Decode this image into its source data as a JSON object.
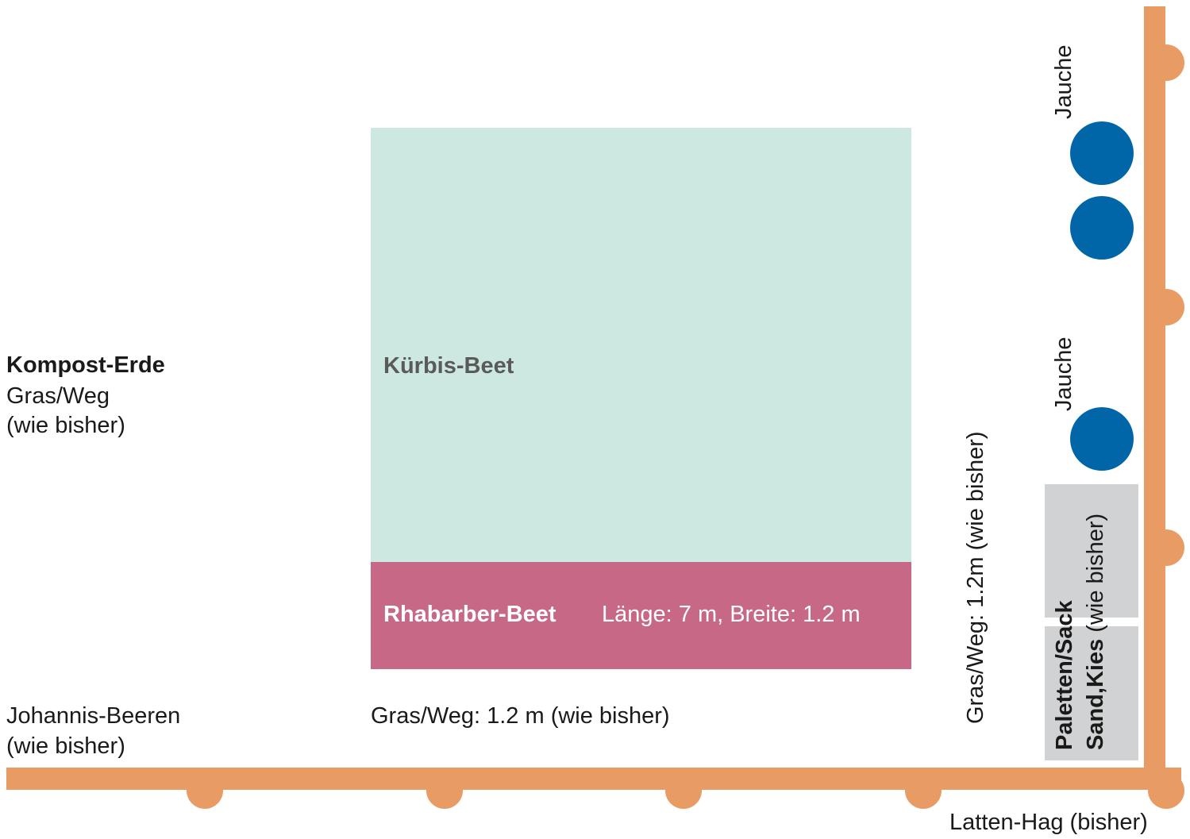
{
  "colors": {
    "fence": "#e89c64",
    "kuerbis_bed": "#cde8e0",
    "rhabarber_bed": "#c66886",
    "barrel": "#0066a8",
    "paletten": "#d1d2d4",
    "text_dark": "#1a1a1a",
    "text_muted": "#5a5a5a"
  },
  "labels": {
    "kompost": {
      "title": "Kompost-Erde",
      "line2": "Gras/Weg",
      "line3": "(wie bisher)"
    },
    "johannis": {
      "line1": "Johannis-Beeren",
      "line2": "(wie bisher)"
    },
    "kuerbis_bed": "Kürbis-Beet",
    "rhabarber": {
      "title": "Rhabarber-Beet",
      "dimensions": "Länge: 7 m, Breite: 1.2 m"
    },
    "gras_weg_bottom": "Gras/Weg: 1.2 m (wie bisher)",
    "gras_weg_right": "Gras/Weg: 1.2m (wie bisher)",
    "jauche_top": "Jauche",
    "jauche_middle": "Jauche",
    "paletten": {
      "bold_line1": "Paletten/Sack",
      "bold_line2": "Sand,Kies",
      "note": "(wie bisher)"
    },
    "latten_hag": "Latten-Hag (bisher)"
  },
  "icons": {
    "fence_post": "circle-post",
    "barrel": "circle-barrel"
  }
}
